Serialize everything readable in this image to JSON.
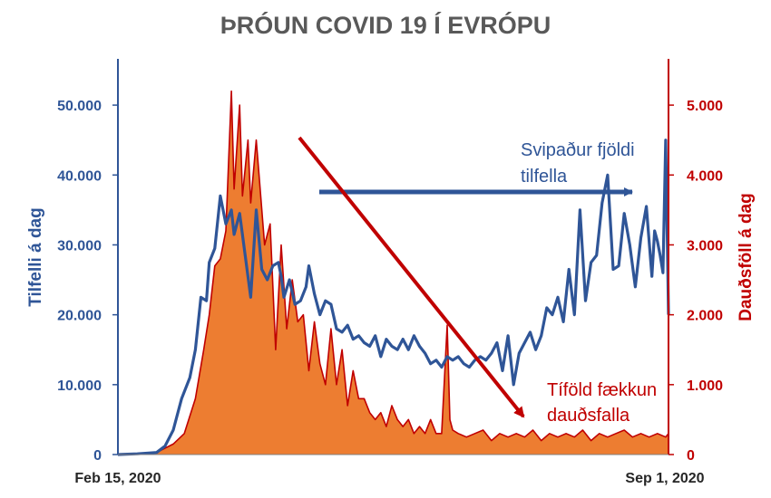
{
  "chart_data": {
    "type": "line",
    "title": "ÞRÓUN COVID 19 Í EVRÓPU",
    "xlabel": "",
    "ylabel": "Tilfelli á dag",
    "ylabel_right": "Dauðsföll á dag",
    "x_ticks": [
      "Feb 15, 2020",
      "Sep 1, 2020"
    ],
    "x_range": [
      "2020-02-15",
      "2020-09-01"
    ],
    "ylim": [
      0,
      55000
    ],
    "ylim_right": [
      0,
      5500
    ],
    "y_ticks": [
      "0",
      "10.000",
      "20.000",
      "30.000",
      "40.000",
      "50.000"
    ],
    "y_ticks_right": [
      "0",
      "1.000",
      "2.000",
      "3.000",
      "4.000",
      "5.000"
    ],
    "grid": false,
    "legend": "none",
    "colors": {
      "cases": "#2F5597",
      "deaths_fill": "#ED7D31",
      "deaths_line": "#C00000",
      "axis_right": "#C00000"
    },
    "series": [
      {
        "axis": "left",
        "x": [
          "2020-02-15",
          "2020-02-22",
          "2020-02-29",
          "2020-03-03",
          "2020-03-06",
          "2020-03-09",
          "2020-03-12",
          "2020-03-14",
          "2020-03-16",
          "2020-03-18",
          "2020-03-19",
          "2020-03-21",
          "2020-03-23",
          "2020-03-25",
          "2020-03-27",
          "2020-03-28",
          "2020-03-30",
          "2020-04-01",
          "2020-04-03",
          "2020-04-05",
          "2020-04-07",
          "2020-04-09",
          "2020-04-11",
          "2020-04-13",
          "2020-04-14",
          "2020-04-15",
          "2020-04-17",
          "2020-04-19",
          "2020-04-21",
          "2020-04-23",
          "2020-04-24",
          "2020-04-26",
          "2020-04-28",
          "2020-04-30",
          "2020-05-02",
          "2020-05-04",
          "2020-05-06",
          "2020-05-08",
          "2020-05-10",
          "2020-05-12",
          "2020-05-14",
          "2020-05-16",
          "2020-05-18",
          "2020-05-20",
          "2020-05-22",
          "2020-05-24",
          "2020-05-26",
          "2020-05-28",
          "2020-05-30",
          "2020-06-01",
          "2020-06-03",
          "2020-06-05",
          "2020-06-07",
          "2020-06-09",
          "2020-06-11",
          "2020-06-13",
          "2020-06-15",
          "2020-06-17",
          "2020-06-19",
          "2020-06-21",
          "2020-06-23",
          "2020-06-25",
          "2020-06-27",
          "2020-06-29",
          "2020-07-01",
          "2020-07-03",
          "2020-07-05",
          "2020-07-07",
          "2020-07-09",
          "2020-07-11",
          "2020-07-13",
          "2020-07-15",
          "2020-07-17",
          "2020-07-19",
          "2020-07-21",
          "2020-07-23",
          "2020-07-25",
          "2020-07-27",
          "2020-07-29",
          "2020-07-31",
          "2020-08-02",
          "2020-08-04",
          "2020-08-06",
          "2020-08-08",
          "2020-08-10",
          "2020-08-12",
          "2020-08-14",
          "2020-08-16",
          "2020-08-18",
          "2020-08-20",
          "2020-08-22",
          "2020-08-24",
          "2020-08-26",
          "2020-08-27",
          "2020-08-28",
          "2020-08-29",
          "2020-08-30",
          "2020-08-31",
          "2020-09-01"
        ],
        "values": [
          0,
          100,
          300,
          1200,
          3500,
          8000,
          11000,
          15000,
          22500,
          22000,
          27500,
          29500,
          37000,
          33000,
          35000,
          31500,
          34500,
          28500,
          22500,
          35000,
          26500,
          25000,
          27000,
          27500,
          25500,
          22500,
          25000,
          21500,
          22000,
          24000,
          27000,
          23000,
          20000,
          22000,
          21500,
          18000,
          17500,
          18500,
          16500,
          17000,
          16000,
          15500,
          17000,
          14000,
          16500,
          15500,
          15000,
          16500,
          15000,
          17000,
          15500,
          14500,
          13000,
          13500,
          12500,
          14000,
          13500,
          14000,
          13000,
          12500,
          13500,
          14000,
          13500,
          14500,
          16000,
          12000,
          17000,
          10000,
          14500,
          16000,
          17500,
          15000,
          17000,
          21000,
          20000,
          22500,
          19000,
          26500,
          20000,
          35000,
          22000,
          27500,
          28500,
          36000,
          40000,
          26500,
          27000,
          34500,
          30000,
          24000,
          31000,
          35500,
          25500,
          32000,
          30500,
          28500,
          26000,
          45000,
          20000
        ]
      },
      {
        "axis": "right",
        "x": [
          "2020-02-15",
          "2020-02-29",
          "2020-03-06",
          "2020-03-10",
          "2020-03-14",
          "2020-03-17",
          "2020-03-19",
          "2020-03-21",
          "2020-03-23",
          "2020-03-25",
          "2020-03-27",
          "2020-03-28",
          "2020-03-30",
          "2020-03-31",
          "2020-04-02",
          "2020-04-03",
          "2020-04-05",
          "2020-04-06",
          "2020-04-08",
          "2020-04-10",
          "2020-04-12",
          "2020-04-14",
          "2020-04-16",
          "2020-04-18",
          "2020-04-20",
          "2020-04-22",
          "2020-04-24",
          "2020-04-26",
          "2020-04-28",
          "2020-04-30",
          "2020-05-02",
          "2020-05-04",
          "2020-05-06",
          "2020-05-08",
          "2020-05-10",
          "2020-05-12",
          "2020-05-14",
          "2020-05-16",
          "2020-05-18",
          "2020-05-20",
          "2020-05-22",
          "2020-05-24",
          "2020-05-26",
          "2020-05-28",
          "2020-05-30",
          "2020-06-01",
          "2020-06-03",
          "2020-06-05",
          "2020-06-07",
          "2020-06-09",
          "2020-06-11",
          "2020-06-13",
          "2020-06-14",
          "2020-06-15",
          "2020-06-17",
          "2020-06-20",
          "2020-06-23",
          "2020-06-26",
          "2020-06-29",
          "2020-07-02",
          "2020-07-05",
          "2020-07-08",
          "2020-07-11",
          "2020-07-14",
          "2020-07-17",
          "2020-07-20",
          "2020-07-23",
          "2020-07-26",
          "2020-07-29",
          "2020-08-01",
          "2020-08-04",
          "2020-08-07",
          "2020-08-10",
          "2020-08-13",
          "2020-08-16",
          "2020-08-19",
          "2020-08-22",
          "2020-08-25",
          "2020-08-28",
          "2020-08-31",
          "2020-09-01"
        ],
        "values": [
          0,
          30,
          150,
          300,
          800,
          1500,
          2000,
          2700,
          2800,
          3200,
          5200,
          3800,
          5000,
          3700,
          4500,
          3600,
          4500,
          4000,
          3000,
          3300,
          1500,
          3000,
          1800,
          2500,
          1900,
          2000,
          1200,
          1900,
          1300,
          1000,
          1800,
          1000,
          1500,
          700,
          1200,
          800,
          800,
          600,
          500,
          600,
          400,
          700,
          500,
          400,
          500,
          300,
          400,
          300,
          500,
          300,
          300,
          1850,
          500,
          350,
          300,
          250,
          300,
          350,
          200,
          300,
          250,
          300,
          250,
          350,
          200,
          300,
          250,
          300,
          250,
          350,
          200,
          300,
          250,
          300,
          350,
          250,
          300,
          250,
          300,
          250,
          300
        ]
      }
    ],
    "annotations": [
      {
        "text_lines": [
          "Svipaður fjöldi",
          "tilfella"
        ],
        "color": "#2F5597"
      },
      {
        "text_lines": [
          "Tíföld fækkun",
          "dauðsfalla"
        ],
        "color": "#C00000"
      }
    ]
  }
}
